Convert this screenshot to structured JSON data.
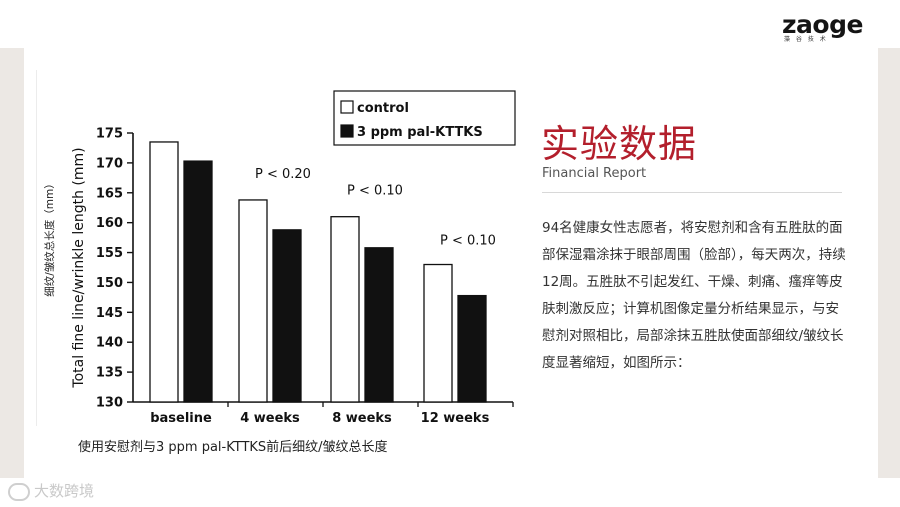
{
  "logo": {
    "text": "zaoge",
    "subtext": "藻 谷 技 术"
  },
  "chart_data": {
    "type": "bar",
    "categories": [
      "baseline",
      "4 weeks",
      "8 weeks",
      "12 weeks"
    ],
    "series": [
      {
        "name": "control",
        "values": [
          173.5,
          163.8,
          161.0,
          153.0
        ],
        "color": "#ffffff"
      },
      {
        "name": "3 ppm pal-KTTKS",
        "values": [
          170.3,
          158.8,
          155.8,
          147.8
        ],
        "color": "#111111"
      }
    ],
    "ylabel": "Total fine line/wrinkle length (mm)",
    "ylabel_cn": "细纹/皱纹总长度（mm）",
    "ylim": [
      130,
      175
    ],
    "yticks": [
      "130",
      "135",
      "140",
      "145",
      "150",
      "155",
      "160",
      "165",
      "170",
      "175"
    ],
    "annotations": [
      "P < 0.20",
      "P < 0.10",
      "P < 0.10"
    ],
    "legend_position": "top-right",
    "grid": false
  },
  "caption": "使用安慰剂与3 ppm pal-KTTKS前后细纹/皱纹总长度",
  "title": "实验数据",
  "subtitle": "Financial Report",
  "body": "94名健康女性志愿者，将安慰剂和含有五胜肽的面部保湿霜涂抹于眼部周围（脸部），每天两次，持续12周。五胜肽不引起发红、干燥、刺痛、瘙痒等皮肤刺激反应；计算机图像定量分析结果显示，与安慰剂对照相比，局部涂抹五胜肽使面部细纹/皱纹长度显著缩短，如图所示：",
  "watermark": "大数跨境"
}
